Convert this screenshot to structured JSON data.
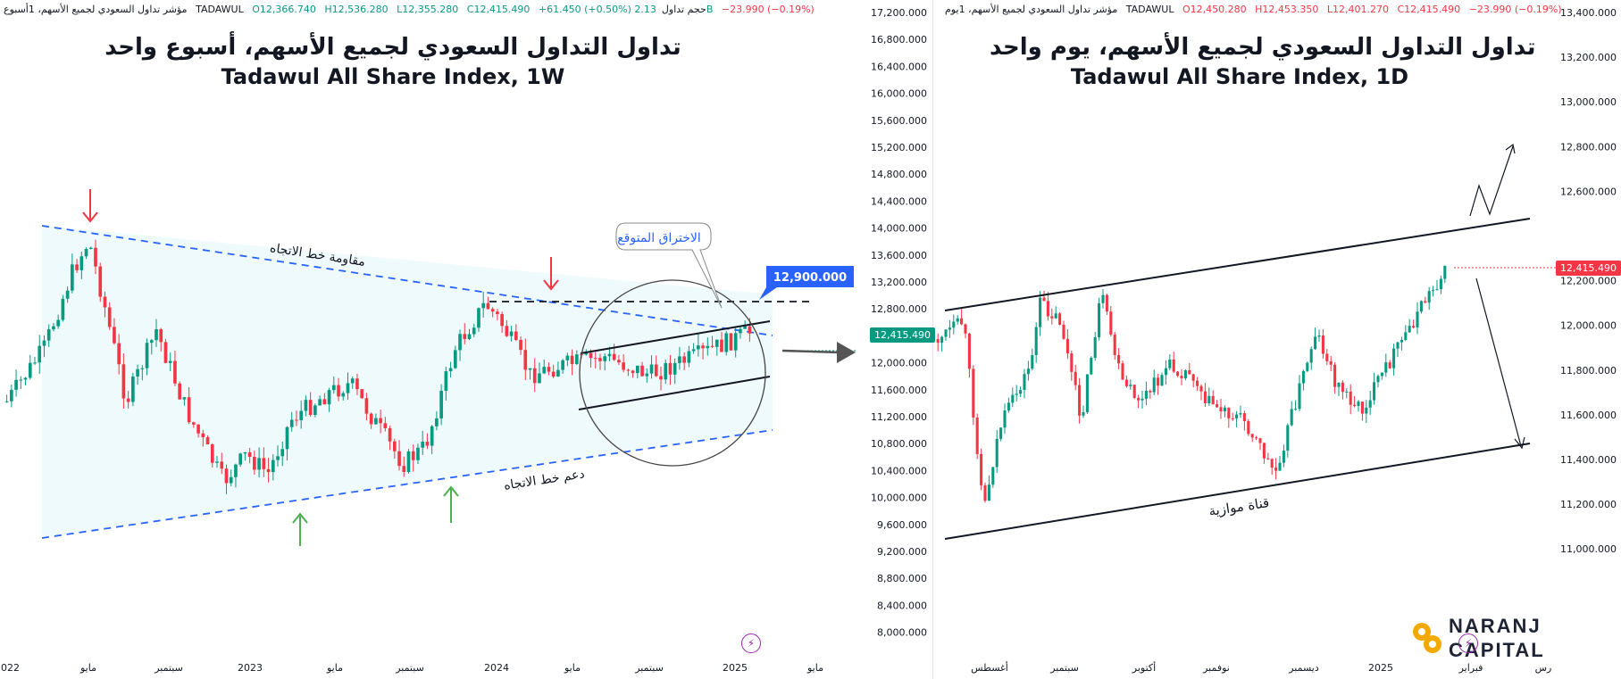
{
  "left": {
    "infobar": {
      "symbol": "مؤشر تداول السعودي لجميع الأسهم، 1أسبوع",
      "exchange": "TADAWUL",
      "o": "O12,366.740",
      "h": "H12,536.280",
      "l": "L12,355.280",
      "c": "C12,415.490",
      "chg": "+61.450 (+0.50%)",
      "vol_label": "حجم تداول",
      "vol": "2.13B",
      "chg2": "−23.990 (−0.19%)"
    },
    "title_ar": "تداول التداول السعودي لجميع الأسهم، أسبوع واحد",
    "title_en": "Tadawul All Share Index, 1W",
    "annotations": {
      "resistance": "مقاومة خط الاتجاه",
      "support": "دعم خط الاتجاه",
      "breakout": "الاختراق المتوقع",
      "target": "12,900.000",
      "last_price": "12,415.490"
    }
  },
  "right": {
    "infobar": {
      "symbol": "مؤشر تداول السعودي لجميع الأسهم، 1يوم",
      "exchange": "TADAWUL",
      "o": "O12,450.280",
      "h": "H12,453.350",
      "l": "L12,401.270",
      "c": "C12,415.490",
      "chg": "−23.990 (−0.19%)"
    },
    "title_ar": "تداول التداول السعودي لجميع الأسهم، يوم واحد",
    "title_en": "Tadawul All Share Index, 1D",
    "annotations": {
      "channel": "قناة موازية",
      "last_price": "12,415.490"
    }
  },
  "logo": {
    "line1": "NARANJ",
    "line2": "CAPITAL"
  },
  "colors": {
    "up": "#089981",
    "down": "#f23645",
    "blue": "#2962ff",
    "accent": "#f2a900"
  },
  "chart_data": [
    {
      "type": "candlestick",
      "title": "Tadawul All Share Index, 1W",
      "yaxis_ticks": [
        "17,200.000",
        "16,800.000",
        "16,400.000",
        "16,000.000",
        "15,600.000",
        "15,200.000",
        "14,800.000",
        "14,400.000",
        "14,000.000",
        "13,600.000",
        "13,200.000",
        "12,800.000",
        "12,000.000",
        "11,600.000",
        "11,200.000",
        "10,800.000",
        "10,400.000",
        "10,000.000",
        "9,600.000",
        "9,200.000",
        "8,800.000",
        "8,400.000",
        "8,000.000"
      ],
      "xaxis_ticks": [
        "2022",
        "مايو",
        "سبتمبر",
        "2023",
        "مايو",
        "سبتمبر",
        "2024",
        "مايو",
        "سبتمبر",
        "2025",
        "مايو"
      ],
      "ylim": [
        7700,
        17400
      ],
      "key_points": {
        "high_2022": 13950,
        "low_2023": 10000,
        "low_2023_b": 10250,
        "high_2024": 12900,
        "last": 12415.49,
        "target": 12900
      }
    },
    {
      "type": "candlestick",
      "title": "Tadawul All Share Index, 1D",
      "yaxis_ticks": [
        "13,400.000",
        "13,200.000",
        "13,000.000",
        "12,800.000",
        "12,600.000",
        "12,200.000",
        "12,000.000",
        "11,800.000",
        "11,600.000",
        "11,400.000",
        "11,200.000",
        "11,000.000"
      ],
      "xaxis_ticks": [
        "أغسطس",
        "سبتمبر",
        "أكتوبر",
        "نوفمبر",
        "ديسمبر",
        "2025",
        "فبراير",
        "رس"
      ],
      "ylim": [
        10960,
        13440
      ],
      "key_points": {
        "low_aug": 11150,
        "high_oct": 12380,
        "low_dec": 11600,
        "high_feb": 12530,
        "last": 12415.49
      }
    }
  ]
}
